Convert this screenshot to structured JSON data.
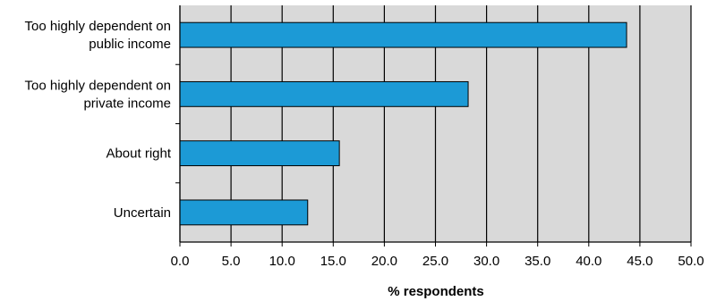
{
  "chart_data": {
    "type": "bar",
    "orientation": "horizontal",
    "categories": [
      [
        "Too highly dependent on",
        "public income"
      ],
      [
        "Too highly dependent on",
        "private income"
      ],
      [
        "About right"
      ],
      [
        "Uncertain"
      ]
    ],
    "values": [
      43.7,
      28.2,
      15.6,
      12.5
    ],
    "xlabel": "% respondents",
    "ylabel": "",
    "title": "",
    "xlim": [
      0,
      50
    ],
    "xticks": [
      "0.0",
      "5.0",
      "10.0",
      "15.0",
      "20.0",
      "25.0",
      "30.0",
      "35.0",
      "40.0",
      "45.0",
      "50.0"
    ],
    "grid": "vertical",
    "colors": {
      "bar": "#1c9ad6",
      "plot_background": "#d9d9d9",
      "gridline": "#000000"
    }
  }
}
